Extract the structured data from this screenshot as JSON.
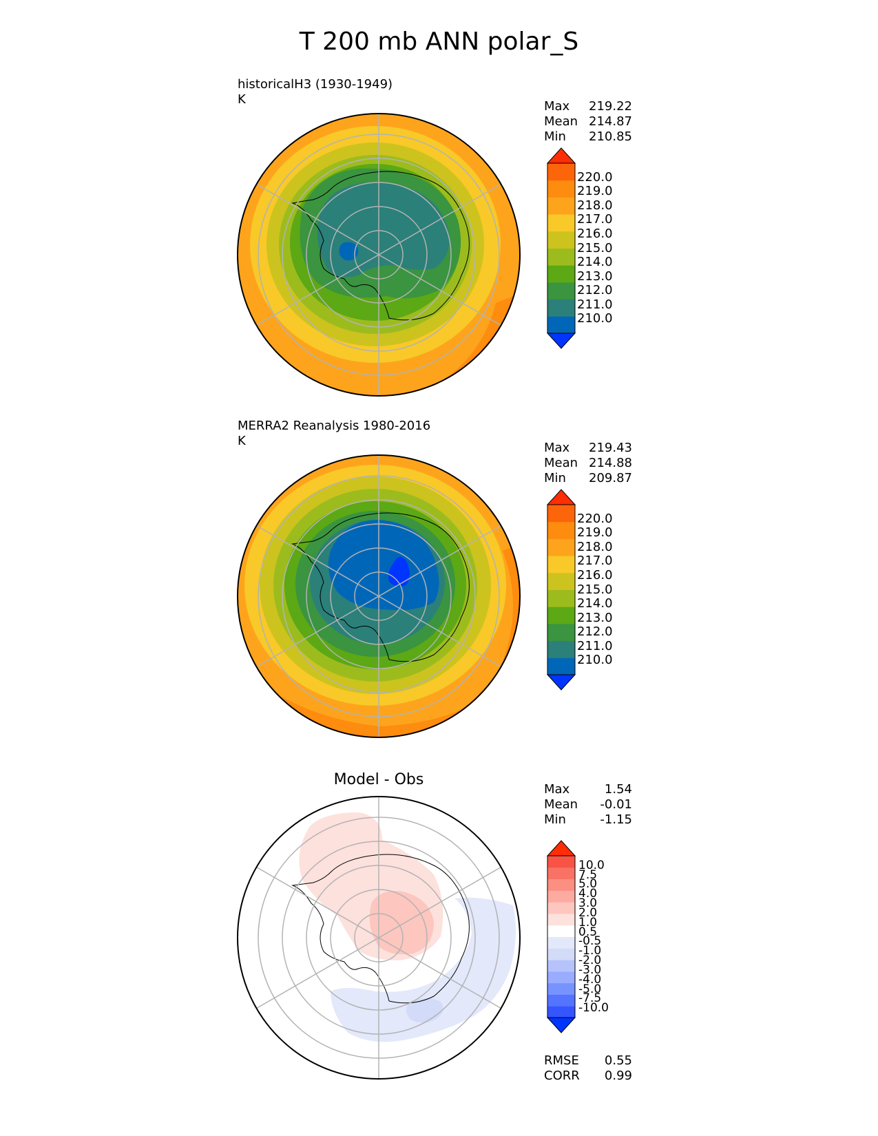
{
  "title": "T 200 mb ANN polar_S",
  "panels": [
    {
      "id": "test",
      "title_lines": [
        "historicalH3 (1930-1949)",
        "K"
      ],
      "stats": [
        [
          "Max",
          "219.22"
        ],
        [
          "Mean",
          "214.87"
        ],
        [
          "Min",
          "210.85"
        ]
      ],
      "colorbar_labels": [
        "220.0",
        "219.0",
        "218.0",
        "217.0",
        "216.0",
        "215.0",
        "214.0",
        "213.0",
        "212.0",
        "211.0",
        "210.0"
      ]
    },
    {
      "id": "ref",
      "title_lines": [
        "MERRA2 Reanalysis 1980-2016",
        "K"
      ],
      "stats": [
        [
          "Max",
          "219.43"
        ],
        [
          "Mean",
          "214.88"
        ],
        [
          "Min",
          "209.87"
        ]
      ],
      "colorbar_labels": [
        "220.0",
        "219.0",
        "218.0",
        "217.0",
        "216.0",
        "215.0",
        "214.0",
        "213.0",
        "212.0",
        "211.0",
        "210.0"
      ]
    },
    {
      "id": "diff",
      "center_title": "Model - Obs",
      "stats": [
        [
          "Max",
          "1.54"
        ],
        [
          "Mean",
          "-0.01"
        ],
        [
          "Min",
          "-1.15"
        ]
      ],
      "colorbar_labels": [
        "10.0",
        "7.5",
        "5.0",
        "4.0",
        "3.0",
        "2.0",
        "1.0",
        "0.5",
        "-0.5",
        "-1.0",
        "-2.0",
        "-3.0",
        "-4.0",
        "-5.0",
        "-7.5",
        "-10.0"
      ],
      "metrics": [
        [
          "RMSE",
          "0.55"
        ],
        [
          "CORR",
          "0.99"
        ]
      ]
    }
  ],
  "colors": {
    "temp_levels": [
      "#0035ff",
      "#0067b8",
      "#2b8079",
      "#3a9440",
      "#5ca815",
      "#9cbc1e",
      "#cdc31e",
      "#f8c928",
      "#fda41c",
      "#fd8c0f",
      "#fd650a",
      "#ff2e05"
    ],
    "diff_levels": [
      "#0035ff",
      "#3455ff",
      "#5474ff",
      "#7793ff",
      "#99acff",
      "#b6c3fb",
      "#d2dcf8",
      "#e3e8fb",
      "#ffffff",
      "#fde1dd",
      "#fdc6bf",
      "#fdaaa0",
      "#fb8f82",
      "#f87366",
      "#f75446",
      "#ff2e05"
    ]
  },
  "chart_data": [
    {
      "type": "heatmap",
      "projection": "south polar stereographic",
      "title": "historicalH3 (1930-1949)",
      "units": "K",
      "levels": [
        210,
        211,
        212,
        213,
        214,
        215,
        216,
        217,
        218,
        219,
        220
      ],
      "extend": "both",
      "stats": {
        "max": 219.22,
        "mean": 214.87,
        "min": 210.85
      },
      "grid": true
    },
    {
      "type": "heatmap",
      "projection": "south polar stereographic",
      "title": "MERRA2 Reanalysis 1980-2016",
      "units": "K",
      "levels": [
        210,
        211,
        212,
        213,
        214,
        215,
        216,
        217,
        218,
        219,
        220
      ],
      "extend": "both",
      "stats": {
        "max": 219.43,
        "mean": 214.88,
        "min": 209.87
      },
      "grid": true
    },
    {
      "type": "heatmap",
      "projection": "south polar stereographic",
      "title": "Model - Obs",
      "levels": [
        -10,
        -7.5,
        -5,
        -4,
        -3,
        -2,
        -1,
        -0.5,
        0.5,
        1,
        2,
        3,
        4,
        5,
        7.5,
        10
      ],
      "extend": "both",
      "stats": {
        "max": 1.54,
        "mean": -0.01,
        "min": -1.15
      },
      "metrics": {
        "RMSE": 0.55,
        "CORR": 0.99
      },
      "grid": true
    }
  ]
}
